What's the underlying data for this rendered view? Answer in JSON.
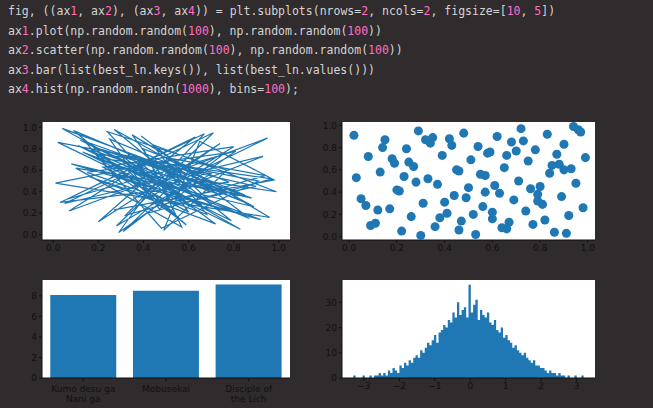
{
  "code": [
    "fig, ((ax1, ax2), (ax3, ax4)) = plt.subplots(nrows=2, ncols=2, figsize=[10, 5])",
    "ax1.plot(np.random.random(100), np.random.random(100))",
    "ax2.scatter(np.random.random(100), np.random.random(100))",
    "ax3.bar(list(best_ln.keys()), list(best_ln.values()))",
    "ax4.hist(np.random.randn(1000), bins=100);"
  ],
  "chart_data": [
    {
      "type": "line",
      "color": "#1f77b4",
      "xlim": [
        -0.05,
        1.05
      ],
      "ylim": [
        -0.05,
        1.05
      ],
      "xticks": [
        {
          "value": 0,
          "label": "0.0"
        },
        0.2,
        0.4,
        0.6,
        0.8,
        {
          "value": 1,
          "label": "1.0"
        }
      ],
      "yticks": [
        {
          "value": 0,
          "label": "0.0"
        },
        0.2,
        0.4,
        0.6,
        0.8,
        {
          "value": 1,
          "label": "1.0"
        }
      ],
      "x": [
        0.34,
        0.87,
        0.12,
        0.56,
        0.93,
        0.05,
        0.71,
        0.28,
        0.64,
        0.19,
        0.82,
        0.41,
        0.07,
        0.95,
        0.53,
        0.31,
        0.76,
        0.15,
        0.68,
        0.44,
        0.99,
        0.23,
        0.58,
        0.09,
        0.84,
        0.37,
        0.62,
        0.02,
        0.91,
        0.48,
        0.17,
        0.73,
        0.39,
        0.86,
        0.26,
        0.55,
        0.11,
        0.79,
        0.46,
        0.66,
        0.04,
        0.88,
        0.33,
        0.59,
        0.21,
        0.97,
        0.42,
        0.14,
        0.75,
        0.51,
        0.29,
        0.81,
        0.06,
        0.63,
        0.36,
        0.92,
        0.18,
        0.7,
        0.47,
        0.25,
        0.85,
        0.1,
        0.57,
        0.4,
        0.78,
        0.03,
        0.67,
        0.32,
        0.94,
        0.52,
        0.2,
        0.74,
        0.45,
        0.08,
        0.89,
        0.27,
        0.61,
        0.38,
        0.83,
        0.13,
        0.69,
        0.5,
        0.01,
        0.96,
        0.35,
        0.6,
        0.22,
        0.8,
        0.43,
        0.16,
        0.72,
        0.3,
        0.9,
        0.54,
        0.24,
        0.77,
        0.49,
        0.65,
        0.98,
        0.27
      ],
      "values": [
        0.61,
        0.15,
        0.88,
        0.42,
        0.73,
        0.29,
        0.95,
        0.08,
        0.53,
        0.81,
        0.36,
        0.67,
        0.22,
        0.9,
        0.47,
        0.03,
        0.76,
        0.58,
        0.19,
        0.84,
        0.4,
        0.64,
        0.11,
        0.97,
        0.31,
        0.7,
        0.25,
        0.86,
        0.5,
        0.06,
        0.79,
        0.38,
        0.92,
        0.17,
        0.56,
        0.44,
        0.83,
        0.13,
        0.68,
        0.27,
        0.99,
        0.34,
        0.6,
        0.09,
        0.75,
        0.52,
        0.2,
        0.87,
        0.41,
        0.65,
        0.02,
        0.78,
        0.33,
        0.91,
        0.46,
        0.14,
        0.72,
        0.57,
        0.24,
        0.89,
        0.37,
        0.62,
        0.07,
        0.8,
        0.49,
        0.3,
        0.94,
        0.18,
        0.55,
        0.71,
        0.12,
        0.85,
        0.43,
        0.66,
        0.26,
        0.98,
        0.39,
        0.59,
        0.05,
        0.77,
        0.32,
        0.69,
        0.48,
        0.16,
        0.93,
        0.21,
        0.63,
        0.82,
        0.35,
        0.54,
        0.1,
        0.74,
        0.45,
        0.28,
        0.96,
        0.6,
        0.04,
        0.87,
        0.51,
        0.23
      ]
    },
    {
      "type": "scatter",
      "color": "#1f77b4",
      "xlim": [
        -0.03,
        1.03
      ],
      "ylim": [
        -0.03,
        1.03
      ],
      "xticks": [
        {
          "value": 0,
          "label": "0.0"
        },
        0.2,
        0.4,
        0.6,
        0.8,
        {
          "value": 1,
          "label": "1.0"
        }
      ],
      "yticks": [
        {
          "value": 0,
          "label": "0.0"
        },
        0.2,
        0.4,
        0.6,
        0.8,
        {
          "value": 1,
          "label": "1.0"
        }
      ],
      "x": [
        0.02,
        0.05,
        0.08,
        0.11,
        0.13,
        0.15,
        0.17,
        0.19,
        0.21,
        0.22,
        0.24,
        0.26,
        0.27,
        0.29,
        0.31,
        0.33,
        0.34,
        0.36,
        0.37,
        0.39,
        0.41,
        0.42,
        0.44,
        0.45,
        0.47,
        0.48,
        0.5,
        0.51,
        0.53,
        0.54,
        0.56,
        0.57,
        0.59,
        0.6,
        0.62,
        0.63,
        0.65,
        0.66,
        0.68,
        0.69,
        0.71,
        0.72,
        0.74,
        0.75,
        0.77,
        0.78,
        0.8,
        0.81,
        0.83,
        0.84,
        0.86,
        0.87,
        0.89,
        0.9,
        0.92,
        0.93,
        0.95,
        0.96,
        0.98,
        0.99,
        0.03,
        0.09,
        0.14,
        0.2,
        0.25,
        0.3,
        0.35,
        0.4,
        0.46,
        0.52,
        0.58,
        0.61,
        0.67,
        0.73,
        0.79,
        0.85,
        0.91,
        0.97,
        0.07,
        0.18,
        0.28,
        0.38,
        0.43,
        0.49,
        0.55,
        0.64,
        0.7,
        0.76,
        0.82,
        0.88,
        0.94,
        0.12,
        0.23,
        0.32,
        0.46,
        0.57,
        0.66,
        0.79,
        0.9,
        0.6
      ],
      "values": [
        0.91,
        0.34,
        0.72,
        0.12,
        0.58,
        0.87,
        0.25,
        0.66,
        0.41,
        0.05,
        0.79,
        0.18,
        0.63,
        0.95,
        0.3,
        0.52,
        0.84,
        0.09,
        0.47,
        0.73,
        0.21,
        0.88,
        0.37,
        0.6,
        0.14,
        0.93,
        0.44,
        0.69,
        0.02,
        0.81,
        0.27,
        0.55,
        0.76,
        0.16,
        0.9,
        0.39,
        0.62,
        0.07,
        0.85,
        0.33,
        0.5,
        0.97,
        0.23,
        0.68,
        0.11,
        0.78,
        0.45,
        0.29,
        0.92,
        0.57,
        0.04,
        0.74,
        0.36,
        0.83,
        0.19,
        0.61,
        0.48,
        0.96,
        0.26,
        0.71,
        0.53,
        0.1,
        0.8,
        0.42,
        0.67,
        0.01,
        0.89,
        0.31,
        0.59,
        0.2,
        0.75,
        0.46,
        0.13,
        0.86,
        0.38,
        0.64,
        0.03,
        0.94,
        0.28,
        0.7,
        0.49,
        0.17,
        0.82,
        0.35,
        0.56,
        0.08,
        0.77,
        0.43,
        0.15,
        0.65,
        0.99,
        0.24,
        0.54,
        0.87,
        0.06,
        0.4,
        0.73,
        0.32,
        0.6,
        0.22
      ]
    },
    {
      "type": "bar",
      "color": "#1f77b4",
      "categories": [
        "Kumo desu ga Nani ga",
        "Mobusekai",
        "Disciple of the Lich"
      ],
      "values": [
        8.1,
        8.5,
        9.1
      ],
      "ylim": [
        0,
        9.55
      ],
      "yticks": [
        0,
        2,
        4,
        6,
        8
      ]
    },
    {
      "type": "histogram",
      "color": "#1f77b4",
      "xlim": [
        -3.62,
        3.52
      ],
      "ylim": [
        0,
        38.85
      ],
      "xticks": [
        {
          "value": -3,
          "label": "−3"
        },
        {
          "value": -2,
          "label": "−2"
        },
        {
          "value": -1,
          "label": "−1"
        },
        0,
        1,
        2,
        3
      ],
      "yticks": [
        0,
        10,
        20,
        30
      ],
      "bins": [
        -3.3,
        -3.235,
        -3.17,
        -3.105,
        -3.04,
        -2.975,
        -2.91,
        -2.845,
        -2.78,
        -2.715,
        -2.65,
        -2.585,
        -2.52,
        -2.455,
        -2.39,
        -2.325,
        -2.26,
        -2.195,
        -2.13,
        -2.065,
        -2.0,
        -1.935,
        -1.87,
        -1.805,
        -1.74,
        -1.675,
        -1.61,
        -1.545,
        -1.48,
        -1.415,
        -1.35,
        -1.285,
        -1.22,
        -1.155,
        -1.09,
        -1.025,
        -0.96,
        -0.895,
        -0.83,
        -0.765,
        -0.7,
        -0.635,
        -0.57,
        -0.505,
        -0.44,
        -0.375,
        -0.31,
        -0.245,
        -0.18,
        -0.115,
        -0.05,
        0.015,
        0.08,
        0.145,
        0.21,
        0.275,
        0.34,
        0.405,
        0.47,
        0.535,
        0.6,
        0.665,
        0.73,
        0.795,
        0.86,
        0.925,
        0.99,
        1.055,
        1.12,
        1.185,
        1.25,
        1.315,
        1.38,
        1.445,
        1.51,
        1.575,
        1.64,
        1.705,
        1.77,
        1.835,
        1.9,
        1.965,
        2.03,
        2.095,
        2.16,
        2.225,
        2.29,
        2.355,
        2.42,
        2.485,
        2.55,
        2.615,
        2.68,
        2.745,
        2.81,
        2.875,
        2.94,
        3.005,
        3.07,
        3.135,
        3.2
      ],
      "values": [
        1,
        0,
        0,
        0,
        1,
        0,
        0,
        1,
        0,
        1,
        1,
        2,
        1,
        2,
        1,
        3,
        2,
        4,
        3,
        2,
        5,
        4,
        6,
        5,
        7,
        6,
        8,
        9,
        8,
        11,
        10,
        12,
        14,
        13,
        15,
        17,
        14,
        18,
        19,
        21,
        20,
        23,
        22,
        26,
        24,
        30,
        25,
        27,
        28,
        24,
        37,
        26,
        29,
        31,
        23,
        27,
        25,
        24,
        26,
        22,
        21,
        23,
        19,
        18,
        20,
        16,
        17,
        15,
        14,
        12,
        13,
        11,
        10,
        9,
        10,
        8,
        7,
        6,
        7,
        5,
        5,
        4,
        4,
        3,
        2,
        3,
        2,
        2,
        1,
        2,
        1,
        1,
        0,
        1,
        0,
        0,
        1,
        0,
        0,
        1
      ]
    }
  ]
}
